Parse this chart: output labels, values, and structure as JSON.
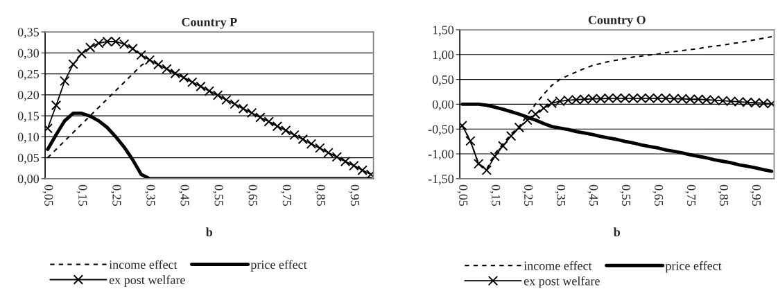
{
  "chart_data": [
    {
      "type": "line",
      "title": "Country P",
      "xlabel": "b",
      "categories": [
        "0,05",
        null,
        null,
        null,
        "0,15",
        null,
        null,
        null,
        "0,25",
        null,
        null,
        null,
        "0,35",
        null,
        null,
        null,
        "0,45",
        null,
        null,
        null,
        "0,55",
        null,
        null,
        null,
        "0,65",
        null,
        null,
        null,
        "0,75",
        null,
        null,
        null,
        "0,85",
        null,
        null,
        null,
        "0,95",
        null,
        null
      ],
      "ylim": [
        0,
        0.35
      ],
      "yticks": [
        {
          "value": 0,
          "label": "0,00"
        },
        {
          "value": 0.05,
          "label": "0,05"
        },
        {
          "value": 0.1,
          "label": "0,10"
        },
        {
          "value": 0.15,
          "label": "0,15"
        },
        {
          "value": 0.2,
          "label": "0,20"
        },
        {
          "value": 0.25,
          "label": "0,25"
        },
        {
          "value": 0.3,
          "label": "0,30"
        },
        {
          "value": 0.35,
          "label": "0,35"
        }
      ],
      "grid": "y",
      "legend": "bottom",
      "series": [
        {
          "name": "income effect",
          "color": "#000000",
          "line_style": "dashed",
          "marker": "none",
          "values": [
            0.05,
            0.07,
            0.09,
            0.11,
            0.13,
            0.15,
            0.17,
            0.19,
            0.21,
            0.23,
            0.25,
            0.27,
            0.283,
            0.272,
            0.262,
            0.251,
            0.241,
            0.23,
            0.22,
            0.209,
            0.199,
            0.188,
            0.178,
            0.167,
            0.157,
            0.146,
            0.136,
            0.125,
            0.115,
            0.104,
            0.094,
            0.083,
            0.073,
            0.062,
            0.052,
            0.041,
            0.031,
            0.02,
            0.01
          ]
        },
        {
          "name": "price effect",
          "color": "#000000",
          "line_style": "solid",
          "marker": "none",
          "values": [
            0.07,
            0.105,
            0.138,
            0.156,
            0.156,
            0.149,
            0.138,
            0.122,
            0.1,
            0.075,
            0.045,
            0.01,
            0,
            0,
            0,
            0,
            0,
            0,
            0,
            0,
            0,
            0,
            0,
            0,
            0,
            0,
            0,
            0,
            0,
            0,
            0,
            0,
            0,
            0,
            0,
            0,
            0,
            0,
            0
          ]
        },
        {
          "name": "ex post welfare",
          "color": "#000000",
          "line_style": "solid",
          "marker": "cross",
          "values": [
            0.12,
            0.175,
            0.233,
            0.273,
            0.298,
            0.313,
            0.323,
            0.327,
            0.327,
            0.321,
            0.31,
            0.295,
            0.283,
            0.272,
            0.262,
            0.251,
            0.241,
            0.23,
            0.22,
            0.209,
            0.199,
            0.188,
            0.178,
            0.167,
            0.157,
            0.146,
            0.136,
            0.125,
            0.115,
            0.104,
            0.094,
            0.083,
            0.073,
            0.062,
            0.052,
            0.041,
            0.031,
            0.02,
            0.01
          ]
        }
      ]
    },
    {
      "type": "line",
      "title": "Country O",
      "xlabel": "b",
      "categories": [
        "0,05",
        null,
        null,
        null,
        "0,15",
        null,
        null,
        null,
        "0,25",
        null,
        null,
        null,
        "0,35",
        null,
        null,
        null,
        "0,45",
        null,
        null,
        null,
        "0,55",
        null,
        null,
        null,
        "0,65",
        null,
        null,
        null,
        "0,75",
        null,
        null,
        null,
        "0,85",
        null,
        null,
        null,
        "0,95",
        null,
        null
      ],
      "ylim": [
        -1.5,
        1.5
      ],
      "yticks": [
        {
          "value": -1.5,
          "label": "-1,50"
        },
        {
          "value": -1,
          "label": "-1,00"
        },
        {
          "value": -0.5,
          "label": "-0,50"
        },
        {
          "value": 0,
          "label": "0,00"
        },
        {
          "value": 0.5,
          "label": "0,50"
        },
        {
          "value": 1,
          "label": "1,00"
        },
        {
          "value": 1.5,
          "label": "1,50"
        }
      ],
      "grid": "y",
      "legend": "bottom",
      "series": [
        {
          "name": "income effect",
          "color": "#000000",
          "line_style": "dashed",
          "marker": "none",
          "values": [
            -0.43,
            -0.74,
            -1.2,
            -1.31,
            -1.0,
            -0.8,
            -0.6,
            -0.45,
            -0.22,
            0.0,
            0.2,
            0.38,
            0.5,
            0.58,
            0.65,
            0.72,
            0.78,
            0.82,
            0.86,
            0.89,
            0.92,
            0.95,
            0.97,
            0.99,
            1.01,
            1.04,
            1.06,
            1.08,
            1.1,
            1.12,
            1.15,
            1.17,
            1.19,
            1.22,
            1.24,
            1.27,
            1.3,
            1.33,
            1.36
          ]
        },
        {
          "name": "price effect",
          "color": "#000000",
          "line_style": "solid",
          "marker": "none",
          "values": [
            0,
            0,
            0,
            -0.02,
            -0.06,
            -0.1,
            -0.15,
            -0.2,
            -0.26,
            -0.32,
            -0.39,
            -0.45,
            -0.48,
            -0.51,
            -0.55,
            -0.58,
            -0.61,
            -0.65,
            -0.68,
            -0.71,
            -0.75,
            -0.78,
            -0.82,
            -0.85,
            -0.88,
            -0.92,
            -0.95,
            -0.98,
            -1.02,
            -1.05,
            -1.08,
            -1.12,
            -1.15,
            -1.18,
            -1.22,
            -1.25,
            -1.28,
            -1.32,
            -1.35
          ]
        },
        {
          "name": "ex post welfare",
          "color": "#000000",
          "line_style": "solid",
          "marker": "cross",
          "values": [
            -0.43,
            -0.74,
            -1.2,
            -1.33,
            -1.05,
            -0.84,
            -0.64,
            -0.47,
            -0.32,
            -0.2,
            -0.08,
            0.02,
            0.06,
            0.08,
            0.09,
            0.1,
            0.11,
            0.11,
            0.12,
            0.12,
            0.12,
            0.12,
            0.12,
            0.12,
            0.12,
            0.12,
            0.11,
            0.11,
            0.1,
            0.1,
            0.09,
            0.08,
            0.07,
            0.06,
            0.05,
            0.04,
            0.03,
            0.02,
            0.01
          ]
        }
      ]
    }
  ]
}
